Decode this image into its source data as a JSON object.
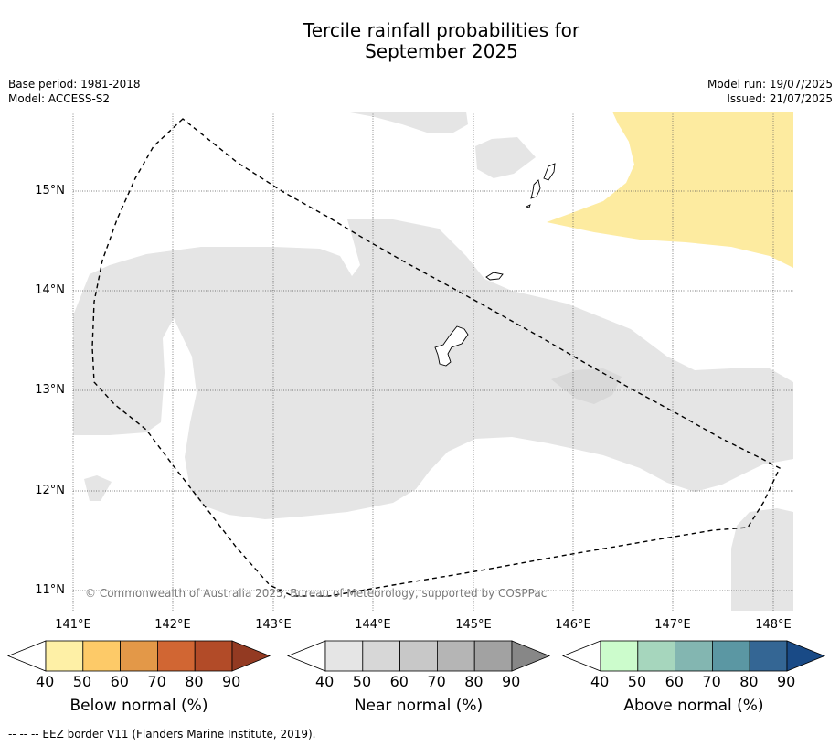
{
  "title": {
    "line1": "Tercile rainfall probabilities for",
    "line2": "September 2025"
  },
  "meta": {
    "base_period": "Base period: 1981-2018",
    "model": "Model: ACCESS-S2",
    "model_run": "Model run: 19/07/2025",
    "issued": "Issued: 21/07/2025"
  },
  "map": {
    "lat_labels": [
      "15°N",
      "14°N",
      "13°N",
      "12°N",
      "11°N"
    ],
    "lon_labels": [
      "141°E",
      "142°E",
      "143°E",
      "144°E",
      "145°E",
      "146°E",
      "147°E",
      "148°E"
    ],
    "copyright": "© Commonwealth of Australia 2025, Bureau of Meteorology, supported by COSPPac",
    "colors": {
      "near_normal_40": "#e5e5e5",
      "near_normal_50": "#d9d9d9",
      "below_normal_40": "#fdeba0",
      "coastline": "#000000"
    }
  },
  "colorbars": [
    {
      "title": "Below normal (%)",
      "ticks": [
        "40",
        "50",
        "60",
        "70",
        "80",
        "90"
      ],
      "colors": [
        "#fef0a6",
        "#fdca68",
        "#e39848",
        "#d16633",
        "#b24b28",
        "#933a22"
      ]
    },
    {
      "title": "Near normal (%)",
      "ticks": [
        "40",
        "50",
        "60",
        "70",
        "80",
        "90"
      ],
      "colors": [
        "#e5e5e5",
        "#d7d7d7",
        "#c8c8c8",
        "#b5b5b5",
        "#a2a2a2",
        "#878787"
      ]
    },
    {
      "title": "Above normal (%)",
      "ticks": [
        "40",
        "50",
        "60",
        "70",
        "80",
        "90"
      ],
      "colors": [
        "#ccfccc",
        "#a6d6bd",
        "#83b6b1",
        "#5b97a3",
        "#346694",
        "#194a86"
      ]
    }
  ],
  "footer": "--  --  -- EEZ border V11 (Flanders Marine Institute, 2019)."
}
